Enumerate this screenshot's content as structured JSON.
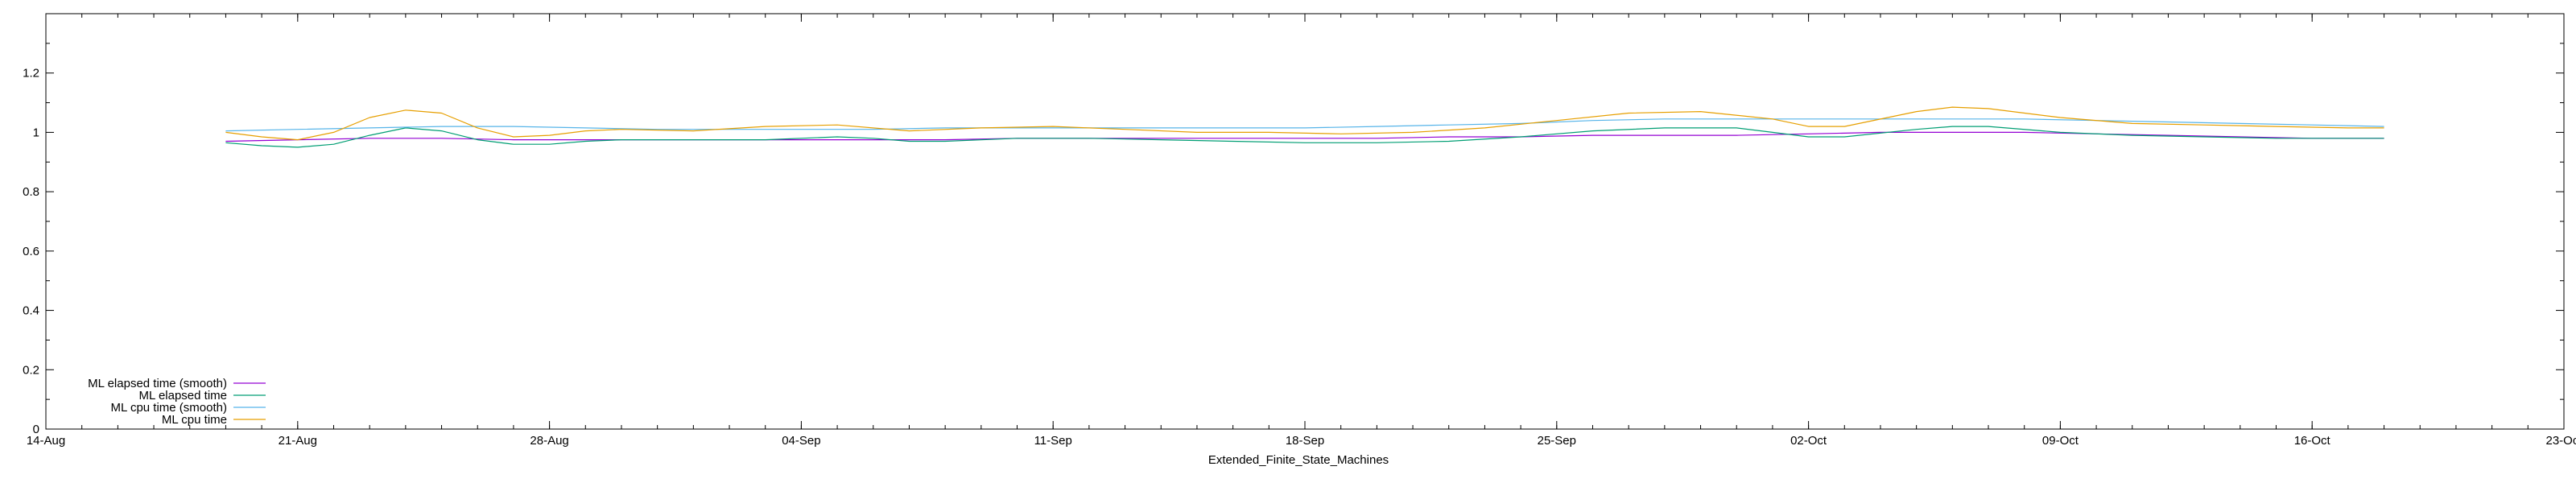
{
  "chart_data": {
    "type": "line",
    "title": "",
    "xlabel": "Extended_Finite_State_Machines",
    "ylabel": "",
    "xlim": [
      "2023-08-14",
      "2023-10-23"
    ],
    "ylim": [
      0,
      1.4
    ],
    "x_ticks": [
      {
        "date": "2023-08-14",
        "label": "14-Aug"
      },
      {
        "date": "2023-08-21",
        "label": "21-Aug"
      },
      {
        "date": "2023-08-28",
        "label": "28-Aug"
      },
      {
        "date": "2023-09-04",
        "label": "04-Sep"
      },
      {
        "date": "2023-09-11",
        "label": "11-Sep"
      },
      {
        "date": "2023-09-18",
        "label": "18-Sep"
      },
      {
        "date": "2023-09-25",
        "label": "25-Sep"
      },
      {
        "date": "2023-10-02",
        "label": "02-Oct"
      },
      {
        "date": "2023-10-09",
        "label": "09-Oct"
      },
      {
        "date": "2023-10-16",
        "label": "16-Oct"
      },
      {
        "date": "2023-10-23",
        "label": "23-Oct"
      }
    ],
    "y_ticks": [
      {
        "value": 0,
        "label": "0"
      },
      {
        "value": 0.2,
        "label": "0.2"
      },
      {
        "value": 0.4,
        "label": "0.4"
      },
      {
        "value": 0.6,
        "label": "0.6"
      },
      {
        "value": 0.8,
        "label": "0.8"
      },
      {
        "value": 1.0,
        "label": "1"
      },
      {
        "value": 1.2,
        "label": "1.2"
      }
    ],
    "grid": false,
    "legend_position": "bottom-left",
    "series": [
      {
        "name": "ML elapsed time (smooth)",
        "color": "#9400d3",
        "points": [
          [
            "2023-08-19",
            0.97
          ],
          [
            "2023-08-21",
            0.975
          ],
          [
            "2023-08-23",
            0.98
          ],
          [
            "2023-08-25",
            0.98
          ],
          [
            "2023-08-27",
            0.975
          ],
          [
            "2023-08-29",
            0.975
          ],
          [
            "2023-08-31",
            0.975
          ],
          [
            "2023-09-02",
            0.975
          ],
          [
            "2023-09-04",
            0.975
          ],
          [
            "2023-09-06",
            0.975
          ],
          [
            "2023-09-08",
            0.975
          ],
          [
            "2023-09-10",
            0.98
          ],
          [
            "2023-09-12",
            0.98
          ],
          [
            "2023-09-14",
            0.98
          ],
          [
            "2023-09-16",
            0.98
          ],
          [
            "2023-09-18",
            0.98
          ],
          [
            "2023-09-20",
            0.98
          ],
          [
            "2023-09-22",
            0.985
          ],
          [
            "2023-09-24",
            0.985
          ],
          [
            "2023-09-26",
            0.99
          ],
          [
            "2023-09-28",
            0.99
          ],
          [
            "2023-09-30",
            0.99
          ],
          [
            "2023-10-02",
            0.995
          ],
          [
            "2023-10-04",
            1.0
          ],
          [
            "2023-10-06",
            1.0
          ],
          [
            "2023-10-08",
            1.0
          ],
          [
            "2023-10-10",
            0.995
          ],
          [
            "2023-10-12",
            0.99
          ],
          [
            "2023-10-14",
            0.985
          ],
          [
            "2023-10-16",
            0.98
          ],
          [
            "2023-10-18",
            0.98
          ]
        ]
      },
      {
        "name": "ML elapsed time",
        "color": "#009e73",
        "points": [
          [
            "2023-08-19",
            0.965
          ],
          [
            "2023-08-20",
            0.955
          ],
          [
            "2023-08-21",
            0.95
          ],
          [
            "2023-08-22",
            0.96
          ],
          [
            "2023-08-23",
            0.99
          ],
          [
            "2023-08-24",
            1.015
          ],
          [
            "2023-08-25",
            1.005
          ],
          [
            "2023-08-26",
            0.975
          ],
          [
            "2023-08-27",
            0.96
          ],
          [
            "2023-08-28",
            0.96
          ],
          [
            "2023-08-29",
            0.97
          ],
          [
            "2023-08-30",
            0.975
          ],
          [
            "2023-09-01",
            0.975
          ],
          [
            "2023-09-03",
            0.975
          ],
          [
            "2023-09-05",
            0.985
          ],
          [
            "2023-09-06",
            0.98
          ],
          [
            "2023-09-07",
            0.97
          ],
          [
            "2023-09-08",
            0.97
          ],
          [
            "2023-09-10",
            0.98
          ],
          [
            "2023-09-12",
            0.98
          ],
          [
            "2023-09-14",
            0.975
          ],
          [
            "2023-09-16",
            0.97
          ],
          [
            "2023-09-18",
            0.965
          ],
          [
            "2023-09-20",
            0.965
          ],
          [
            "2023-09-22",
            0.97
          ],
          [
            "2023-09-24",
            0.985
          ],
          [
            "2023-09-26",
            1.005
          ],
          [
            "2023-09-28",
            1.015
          ],
          [
            "2023-09-30",
            1.015
          ],
          [
            "2023-10-01",
            1.0
          ],
          [
            "2023-10-02",
            0.985
          ],
          [
            "2023-10-03",
            0.985
          ],
          [
            "2023-10-05",
            1.01
          ],
          [
            "2023-10-06",
            1.02
          ],
          [
            "2023-10-07",
            1.02
          ],
          [
            "2023-10-09",
            1.0
          ],
          [
            "2023-10-11",
            0.99
          ],
          [
            "2023-10-13",
            0.985
          ],
          [
            "2023-10-15",
            0.98
          ],
          [
            "2023-10-17",
            0.98
          ],
          [
            "2023-10-18",
            0.98
          ]
        ]
      },
      {
        "name": "ML cpu time (smooth)",
        "color": "#56b4e9",
        "points": [
          [
            "2023-08-19",
            1.005
          ],
          [
            "2023-08-21",
            1.01
          ],
          [
            "2023-08-23",
            1.015
          ],
          [
            "2023-08-25",
            1.02
          ],
          [
            "2023-08-27",
            1.02
          ],
          [
            "2023-08-29",
            1.015
          ],
          [
            "2023-08-31",
            1.01
          ],
          [
            "2023-09-02",
            1.01
          ],
          [
            "2023-09-04",
            1.01
          ],
          [
            "2023-09-06",
            1.01
          ],
          [
            "2023-09-08",
            1.015
          ],
          [
            "2023-09-10",
            1.015
          ],
          [
            "2023-09-12",
            1.015
          ],
          [
            "2023-09-14",
            1.015
          ],
          [
            "2023-09-16",
            1.015
          ],
          [
            "2023-09-18",
            1.015
          ],
          [
            "2023-09-20",
            1.02
          ],
          [
            "2023-09-22",
            1.025
          ],
          [
            "2023-09-24",
            1.03
          ],
          [
            "2023-09-26",
            1.04
          ],
          [
            "2023-09-28",
            1.045
          ],
          [
            "2023-09-30",
            1.045
          ],
          [
            "2023-10-02",
            1.045
          ],
          [
            "2023-10-04",
            1.045
          ],
          [
            "2023-10-06",
            1.045
          ],
          [
            "2023-10-08",
            1.045
          ],
          [
            "2023-10-10",
            1.04
          ],
          [
            "2023-10-12",
            1.035
          ],
          [
            "2023-10-14",
            1.03
          ],
          [
            "2023-10-16",
            1.025
          ],
          [
            "2023-10-18",
            1.02
          ]
        ]
      },
      {
        "name": "ML cpu time",
        "color": "#e69f00",
        "points": [
          [
            "2023-08-19",
            1.0
          ],
          [
            "2023-08-20",
            0.985
          ],
          [
            "2023-08-21",
            0.975
          ],
          [
            "2023-08-22",
            1.0
          ],
          [
            "2023-08-23",
            1.05
          ],
          [
            "2023-08-24",
            1.075
          ],
          [
            "2023-08-25",
            1.065
          ],
          [
            "2023-08-26",
            1.015
          ],
          [
            "2023-08-27",
            0.985
          ],
          [
            "2023-08-28",
            0.99
          ],
          [
            "2023-08-29",
            1.005
          ],
          [
            "2023-08-30",
            1.01
          ],
          [
            "2023-09-01",
            1.005
          ],
          [
            "2023-09-03",
            1.02
          ],
          [
            "2023-09-05",
            1.025
          ],
          [
            "2023-09-07",
            1.005
          ],
          [
            "2023-09-09",
            1.015
          ],
          [
            "2023-09-11",
            1.02
          ],
          [
            "2023-09-13",
            1.01
          ],
          [
            "2023-09-15",
            1.0
          ],
          [
            "2023-09-17",
            1.0
          ],
          [
            "2023-09-19",
            0.995
          ],
          [
            "2023-09-21",
            1.0
          ],
          [
            "2023-09-23",
            1.015
          ],
          [
            "2023-09-25",
            1.04
          ],
          [
            "2023-09-27",
            1.065
          ],
          [
            "2023-09-29",
            1.07
          ],
          [
            "2023-10-01",
            1.045
          ],
          [
            "2023-10-02",
            1.02
          ],
          [
            "2023-10-03",
            1.02
          ],
          [
            "2023-10-05",
            1.07
          ],
          [
            "2023-10-06",
            1.085
          ],
          [
            "2023-10-07",
            1.08
          ],
          [
            "2023-10-09",
            1.05
          ],
          [
            "2023-10-11",
            1.03
          ],
          [
            "2023-10-13",
            1.025
          ],
          [
            "2023-10-15",
            1.02
          ],
          [
            "2023-10-17",
            1.015
          ],
          [
            "2023-10-18",
            1.015
          ]
        ]
      }
    ]
  }
}
